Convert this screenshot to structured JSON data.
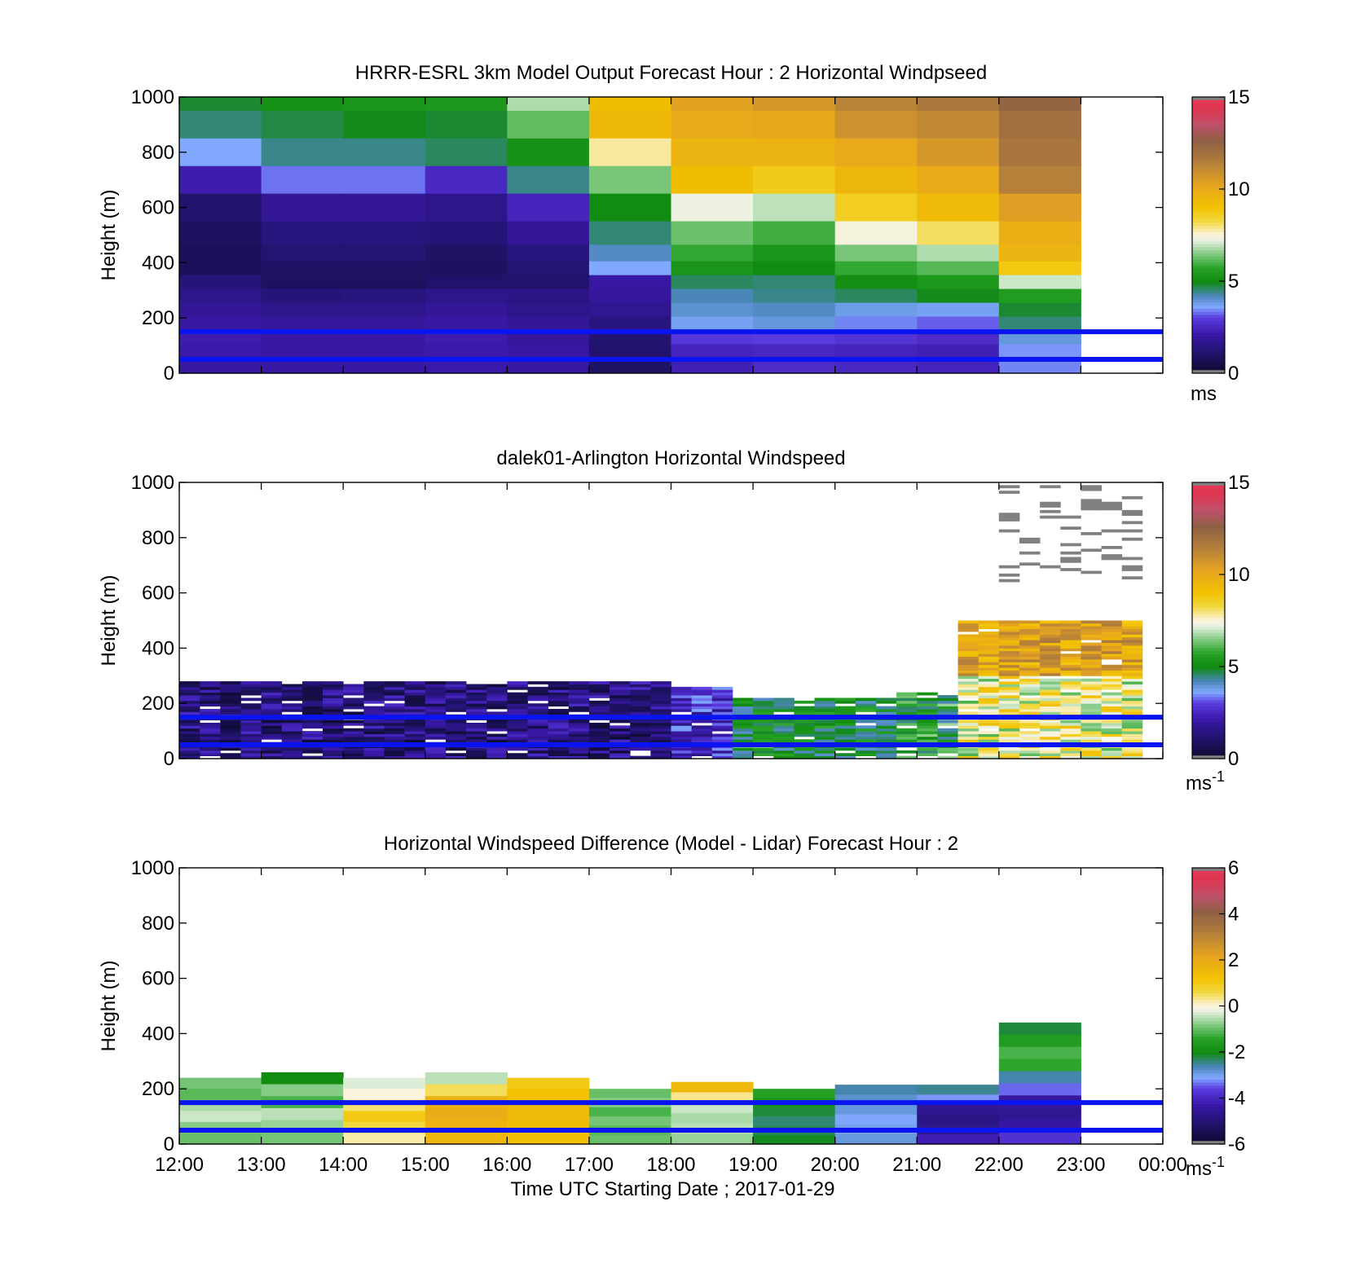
{
  "chart_data": [
    {
      "type": "heatmap",
      "title": "HRRR-ESRL 3km Model Output   Forecast Hour : 2 Horizontal Windpseed",
      "ylabel": "Height (m)",
      "xlim": [
        "12:00",
        "00:00"
      ],
      "ylim": [
        0,
        1000
      ],
      "yticks": [
        0,
        200,
        400,
        600,
        800,
        1000
      ],
      "colorbar": {
        "ticks": [
          0,
          5,
          10,
          15
        ],
        "range": [
          0,
          15
        ],
        "unit": "ms"
      },
      "hour_columns": [
        "12:00",
        "13:00",
        "14:00",
        "15:00",
        "16:00",
        "17:00",
        "18:00",
        "19:00",
        "20:00",
        "21:00",
        "22:00"
      ],
      "height_levels": [
        1000,
        900,
        800,
        700,
        600,
        500,
        430,
        380,
        330,
        280,
        230,
        180,
        130,
        80,
        40
      ],
      "values": [
        [
          4.8,
          5.2,
          5.3,
          5.4,
          6.8,
          9.2,
          10.3,
          10.6,
          11.3,
          11.7,
          12.4
        ],
        [
          4.5,
          4.7,
          4.9,
          4.8,
          6.2,
          9.4,
          10.0,
          10.1,
          10.8,
          11.1,
          12.0
        ],
        [
          3.6,
          4.4,
          4.4,
          4.6,
          5.2,
          7.8,
          9.6,
          9.6,
          10.0,
          10.6,
          11.8
        ],
        [
          2.2,
          3.3,
          3.3,
          2.5,
          4.4,
          6.4,
          9.2,
          8.7,
          9.5,
          9.9,
          11.4
        ],
        [
          1.1,
          1.8,
          1.8,
          1.6,
          2.4,
          5.0,
          7.3,
          6.9,
          8.6,
          9.3,
          10.4
        ],
        [
          0.9,
          1.4,
          1.4,
          1.3,
          1.8,
          4.5,
          6.3,
          5.9,
          7.4,
          8.1,
          9.8
        ],
        [
          0.8,
          1.2,
          1.2,
          1.0,
          1.4,
          4.1,
          5.8,
          5.3,
          6.4,
          6.8,
          9.6
        ],
        [
          0.8,
          1.0,
          1.0,
          0.9,
          1.2,
          3.6,
          5.3,
          5.0,
          5.8,
          6.1,
          8.8
        ],
        [
          1.3,
          0.9,
          0.9,
          1.1,
          1.1,
          2.0,
          4.6,
          4.5,
          5.1,
          5.4,
          7.0
        ],
        [
          1.6,
          1.3,
          1.4,
          1.6,
          1.5,
          1.9,
          4.2,
          4.4,
          4.6,
          4.9,
          5.5
        ],
        [
          1.8,
          1.6,
          1.6,
          1.8,
          1.6,
          1.7,
          4.0,
          4.1,
          3.8,
          3.7,
          4.8
        ],
        [
          2.0,
          1.9,
          1.9,
          2.0,
          1.8,
          1.4,
          3.7,
          3.9,
          3.4,
          3.2,
          4.5
        ],
        [
          2.2,
          2.0,
          2.0,
          2.2,
          1.9,
          1.2,
          2.9,
          3.0,
          2.8,
          2.6,
          3.9
        ],
        [
          2.1,
          2.0,
          2.0,
          2.1,
          2.0,
          1.1,
          2.4,
          2.5,
          2.4,
          2.3,
          3.5
        ],
        [
          2.0,
          2.0,
          2.0,
          2.1,
          2.0,
          1.0,
          2.3,
          2.6,
          2.5,
          2.4,
          3.4
        ]
      ],
      "reference_lines_m": [
        150,
        50
      ]
    },
    {
      "type": "heatmap",
      "title": "dalek01-Arlington  Horizontal Windspeed",
      "ylabel": "Height (m)",
      "xlim": [
        "12:00",
        "00:00"
      ],
      "ylim": [
        0,
        1000
      ],
      "yticks": [
        0,
        200,
        400,
        600,
        800,
        1000
      ],
      "colorbar": {
        "ticks": [
          0,
          5,
          10,
          15
        ],
        "range": [
          0,
          15
        ],
        "unit": "ms",
        "unit_sup": "-1"
      },
      "segments": [
        {
          "start": "12:00",
          "end": "18:00",
          "top_m": 280,
          "center": 1.4,
          "spread": 1.2
        },
        {
          "start": "18:00",
          "end": "18:45",
          "top_m": 260,
          "center": 2.6,
          "spread": 1.1
        },
        {
          "start": "18:45",
          "end": "20:45",
          "top_m": 220,
          "center": 4.9,
          "spread": 0.9
        },
        {
          "start": "20:45",
          "end": "21:30",
          "top_m": 240,
          "center": 5.4,
          "spread": 1.3
        },
        {
          "start": "21:30",
          "end": "23:45",
          "top_m": 300,
          "center": 7.6,
          "spread": 1.6
        },
        {
          "start": "21:30",
          "end": "23:45",
          "top_m": 500,
          "center": 10.3,
          "spread": 1.5,
          "bottom_m": 300
        },
        {
          "start": "22:00",
          "end": "23:45",
          "top_m": 1000,
          "center": 15.5,
          "spread": 0,
          "bottom_m": 640,
          "sparse": true
        }
      ],
      "reference_lines_m": [
        150,
        50
      ]
    },
    {
      "type": "heatmap",
      "title": "Horizontal Windspeed Difference (Model - Lidar) Forecast Hour : 2",
      "ylabel": "Height (m)",
      "xlabel": "Time UTC  Starting Date ; 2017-01-29",
      "xticks": [
        "12:00",
        "13:00",
        "14:00",
        "15:00",
        "16:00",
        "17:00",
        "18:00",
        "19:00",
        "20:00",
        "21:00",
        "22:00",
        "23:00",
        "00:00"
      ],
      "ylim": [
        0,
        1000
      ],
      "yticks": [
        0,
        200,
        400,
        600,
        800,
        1000
      ],
      "colorbar": {
        "ticks": [
          6,
          4,
          2,
          0,
          -2,
          -4,
          -6
        ],
        "range": [
          -6,
          6
        ],
        "unit": "ms",
        "unit_sup": "-1"
      },
      "columns": [
        {
          "hour": "12:00",
          "top_m": 240,
          "values": [
            -0.9,
            -1.1,
            -0.6,
            -0.4,
            -0.8,
            -1.0
          ]
        },
        {
          "hour": "13:00",
          "top_m": 260,
          "values": [
            -2.0,
            -0.8,
            -1.2,
            -0.5,
            -0.7,
            -0.9
          ]
        },
        {
          "hour": "14:00",
          "top_m": 240,
          "values": [
            -0.3,
            0.0,
            0.4,
            1.0,
            0.6,
            0.2
          ]
        },
        {
          "hour": "15:00",
          "top_m": 260,
          "values": [
            -0.5,
            0.5,
            1.8,
            1.9,
            1.7,
            1.6
          ]
        },
        {
          "hour": "16:00",
          "top_m": 240,
          "values": [
            1.0,
            1.2,
            1.5,
            1.5,
            1.4,
            1.3
          ]
        },
        {
          "hour": "17:00",
          "top_m": 200,
          "values": [
            -1.0,
            -0.8,
            -1.2,
            -0.9,
            -1.1,
            -1.0
          ]
        },
        {
          "hour": "18:00",
          "top_m": 225,
          "values": [
            1.5,
            0.3,
            -0.4,
            -0.6,
            -0.5,
            -0.7
          ]
        },
        {
          "hour": "19:00",
          "top_m": 200,
          "values": [
            -1.5,
            -1.8,
            -2.2,
            -2.4,
            -2.3,
            -2.1
          ]
        },
        {
          "hour": "20:00",
          "top_m": 215,
          "values": [
            -2.6,
            -2.8,
            -2.9,
            -3.1,
            -3.0,
            -2.9
          ]
        },
        {
          "hour": "21:00",
          "top_m": 215,
          "values": [
            -2.5,
            -3.2,
            -4.6,
            -4.8,
            -4.7,
            -4.2
          ]
        },
        {
          "hour": "22:00",
          "top_m": 440,
          "values": [
            -2.2,
            -1.6,
            -1.2,
            -1.4,
            -2.6,
            -3.4,
            -4.5,
            -4.6,
            -4.4,
            -3.8
          ]
        }
      ],
      "reference_lines_m": [
        150,
        50
      ]
    }
  ]
}
